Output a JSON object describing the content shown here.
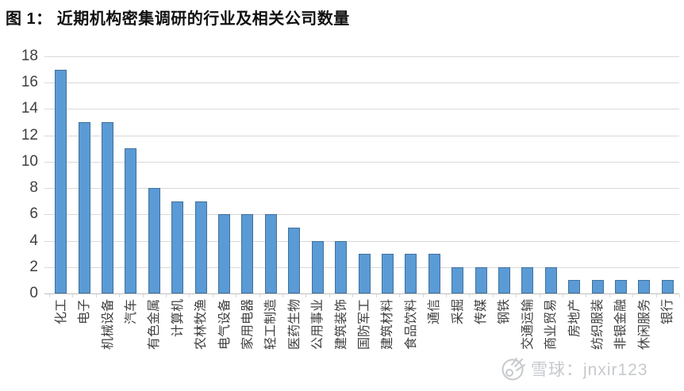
{
  "title": "图 1： 近期机构密集调研的行业及相关公司数量",
  "watermark": {
    "text": "雪球：jnxir123",
    "logo_icon": "xueqiu-snowball-logo"
  },
  "colors": {
    "bar_fill": "#5b9bd5",
    "bar_border": "#41719c",
    "gridline": "#d9d9d9",
    "axis_line": "#bfbfbf",
    "tick_label": "#3f3f3f",
    "watermark": "#c6cacd"
  },
  "chart_data": {
    "type": "bar",
    "title": "图 1： 近期机构密集调研的行业及相关公司数量",
    "categories": [
      "化工",
      "电子",
      "机械设备",
      "汽车",
      "有色金属",
      "计算机",
      "农林牧渔",
      "电气设备",
      "家用电器",
      "轻工制造",
      "医药生物",
      "公用事业",
      "建筑装饰",
      "国防军工",
      "建筑材料",
      "食品饮料",
      "通信",
      "采掘",
      "传媒",
      "钢铁",
      "交通运输",
      "商业贸易",
      "房地产",
      "纺织服装",
      "非银金融",
      "休闲服务",
      "银行"
    ],
    "values": [
      17,
      13,
      13,
      11,
      8,
      7,
      7,
      6,
      6,
      6,
      5,
      4,
      4,
      3,
      3,
      3,
      3,
      2,
      2,
      2,
      2,
      2,
      1,
      1,
      1,
      1,
      1
    ],
    "xlabel": "",
    "ylabel": "",
    "ylim": [
      0,
      18
    ],
    "ytick_step": 2,
    "yticks": [
      0,
      2,
      4,
      6,
      8,
      10,
      12,
      14,
      16,
      18
    ],
    "grid": true,
    "legend": "none",
    "x_tick_label_rotation": -90
  }
}
